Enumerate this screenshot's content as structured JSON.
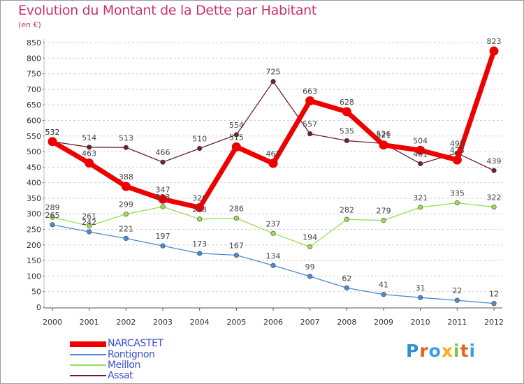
{
  "title": "Evolution du Montant de la Dette par Habitant",
  "subtitle": "(en €)",
  "chart_data": {
    "type": "line",
    "title": "Evolution du Montant de la Dette par Habitant",
    "subtitle": "(en €)",
    "x": [
      "2000",
      "2001",
      "2002",
      "2003",
      "2004",
      "2005",
      "2006",
      "2007",
      "2008",
      "2009",
      "2010",
      "2011",
      "2012"
    ],
    "ylim": [
      0,
      850
    ],
    "yticks": [
      0,
      50,
      100,
      150,
      200,
      250,
      300,
      350,
      400,
      450,
      500,
      550,
      600,
      650,
      700,
      750,
      800,
      850
    ],
    "grid": "horizontal dashed",
    "legend": "bottom-left",
    "series": [
      {
        "name": "Assat",
        "color": "#6e1f2c",
        "values": [
          532,
          514,
          513,
          466,
          510,
          554,
          725,
          557,
          535,
          526,
          461,
          495,
          439
        ]
      },
      {
        "name": "Meillon",
        "color": "#99dd55",
        "values": [
          289,
          261,
          299,
          323,
          283,
          286,
          237,
          194,
          282,
          279,
          321,
          335,
          322
        ]
      },
      {
        "name": "Rontignon",
        "color": "#4d8ad0",
        "values": [
          265,
          242,
          221,
          197,
          173,
          167,
          134,
          99,
          62,
          41,
          31,
          22,
          12
        ]
      },
      {
        "name": "NARCASTET",
        "color": "#ee0000",
        "values": [
          532,
          463,
          388,
          347,
          320,
          515,
          462,
          663,
          628,
          521,
          504,
          473,
          823
        ]
      }
    ]
  },
  "legend": [
    {
      "name": "NARCASTET",
      "color": "#ee0000"
    },
    {
      "name": "Rontignon",
      "color": "#4d8ad0"
    },
    {
      "name": "Meillon",
      "color": "#99dd55"
    },
    {
      "name": "Assat",
      "color": "#6e1f2c"
    }
  ],
  "logo": {
    "text": "Proxiti",
    "colors": [
      "#2f8fd6",
      "#e8641c",
      "#3c9ee0",
      "#f0b020",
      "#7cc242",
      "#e8641c",
      "#3c9ee0"
    ]
  }
}
